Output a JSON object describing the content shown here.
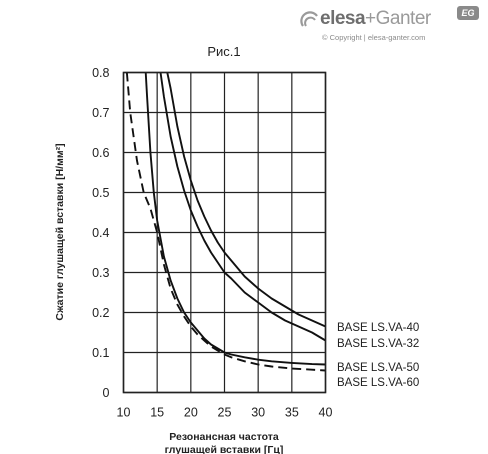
{
  "brand": {
    "name_part1": "elesa",
    "name_part2": "+Ganter",
    "badge": "EG",
    "copyright": "© Copyright | elesa-ganter.com",
    "logo_icon": "elesa-arc-icon"
  },
  "chart_data": {
    "type": "line",
    "title": "Рис.1",
    "xlabel_lines": [
      "Резонансная частота",
      "глушащей вставки [Гц]"
    ],
    "ylabel": "Сжатие глушащей вставки [Н/мм²]",
    "xlim": [
      10,
      40
    ],
    "ylim": [
      0,
      0.8
    ],
    "xticks": [
      10,
      15,
      20,
      25,
      30,
      35,
      40
    ],
    "yticks": [
      0,
      0.1,
      0.2,
      0.3,
      0.4,
      0.5,
      0.6,
      0.7,
      0.8
    ],
    "grid": true,
    "series": [
      {
        "name": "BASE LS.VA-40",
        "style": "solid",
        "x": [
          16.5,
          17,
          18,
          19,
          20,
          21,
          22,
          23,
          24,
          25,
          26,
          28,
          30,
          32,
          34,
          36,
          38,
          40
        ],
        "y": [
          0.8,
          0.76,
          0.665,
          0.59,
          0.53,
          0.48,
          0.44,
          0.405,
          0.375,
          0.35,
          0.33,
          0.29,
          0.26,
          0.235,
          0.215,
          0.195,
          0.18,
          0.165
        ]
      },
      {
        "name": "BASE LS.VA-32",
        "style": "solid",
        "x": [
          15.5,
          16,
          17,
          18,
          19,
          20,
          21,
          22,
          23,
          24,
          25,
          26,
          28,
          30,
          32,
          34,
          36,
          38,
          40
        ],
        "y": [
          0.8,
          0.74,
          0.64,
          0.565,
          0.505,
          0.455,
          0.415,
          0.38,
          0.35,
          0.325,
          0.3,
          0.285,
          0.25,
          0.225,
          0.2,
          0.18,
          0.165,
          0.15,
          0.13
        ]
      },
      {
        "name": "BASE LS.VA-50",
        "style": "solid",
        "x": [
          13.3,
          13.5,
          14,
          14.5,
          15,
          16,
          17,
          18,
          19,
          20,
          21,
          22,
          23,
          24,
          25,
          26,
          28,
          30,
          32,
          35,
          38,
          40
        ],
        "y": [
          0.8,
          0.74,
          0.6,
          0.5,
          0.43,
          0.34,
          0.28,
          0.235,
          0.2,
          0.175,
          0.155,
          0.135,
          0.12,
          0.11,
          0.1,
          0.095,
          0.088,
          0.082,
          0.078,
          0.074,
          0.071,
          0.07
        ]
      },
      {
        "name": "BASE LS.VA-60",
        "style": "dashed",
        "x": [
          10.5,
          11,
          12,
          13,
          14,
          15,
          16,
          17,
          18,
          19,
          20,
          21,
          22,
          23,
          24,
          25,
          26,
          28,
          30,
          32,
          35,
          38,
          40
        ],
        "y": [
          0.8,
          0.7,
          0.58,
          0.5,
          0.46,
          0.4,
          0.32,
          0.26,
          0.22,
          0.19,
          0.165,
          0.145,
          0.13,
          0.115,
          0.105,
          0.095,
          0.088,
          0.078,
          0.07,
          0.065,
          0.06,
          0.057,
          0.055
        ]
      }
    ]
  }
}
